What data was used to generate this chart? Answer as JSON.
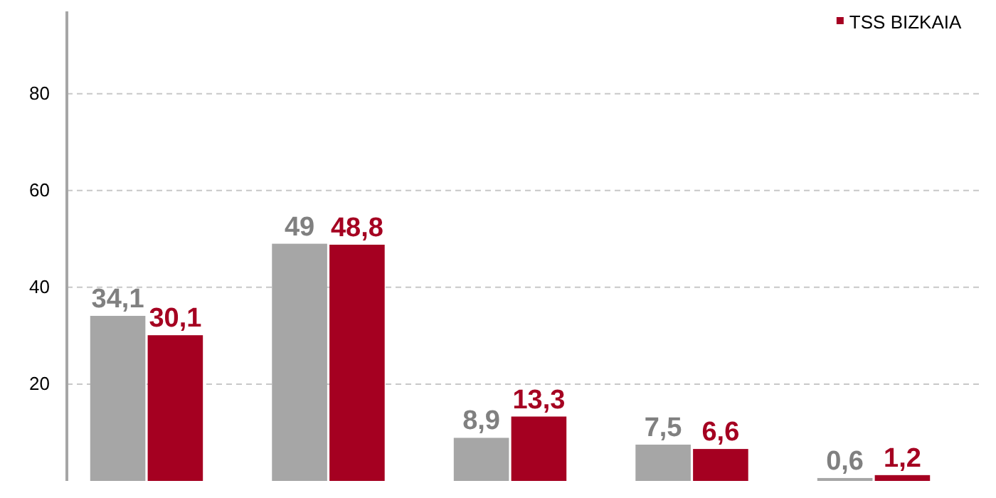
{
  "chart_data": {
    "type": "bar",
    "categories": [
      null,
      null,
      null,
      null,
      null
    ],
    "series": [
      {
        "color": "#a6a6a6",
        "values": [
          34.1,
          49,
          8.9,
          7.5,
          0.6
        ],
        "value_labels": [
          "34,1",
          "49",
          "8,9",
          "7,5",
          "0,6"
        ]
      },
      {
        "name": "TSS BIZKAIA",
        "color": "#a50021",
        "values": [
          30.1,
          48.8,
          13.3,
          6.6,
          1.2
        ],
        "value_labels": [
          "30,1",
          "48,8",
          "13,3",
          "6,6",
          "1,2"
        ]
      }
    ],
    "ylim": [
      0,
      97
    ],
    "yticks": [
      20,
      40,
      60,
      80
    ],
    "grid": "y",
    "legend": "top right"
  }
}
